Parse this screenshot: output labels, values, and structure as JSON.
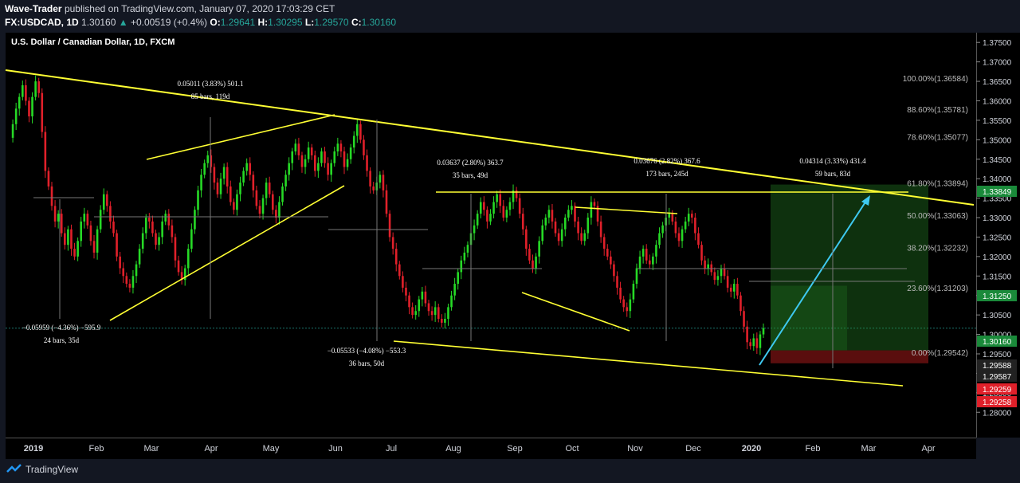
{
  "header": {
    "author": "Wave-Trader",
    "published": "published on TradingView.com, January 07, 2020 17:03:29 CET",
    "symbol": "FX:USDCAD, 1D",
    "last": "1.30160",
    "change": "+0.00519 (+0.4%)",
    "o_label": "O:",
    "o_value": "1.29641",
    "h_label": "H:",
    "h_value": "1.30295",
    "l_label": "L:",
    "l_value": "1.29570",
    "c_label": "C:",
    "c_value": "1.30160"
  },
  "chart_title": "U.S. Dollar / Canadian Dollar, 1D, FXCM",
  "footer": {
    "brand": "TradingView"
  },
  "colors": {
    "up": "#26d926",
    "down": "#e0202a",
    "trendline": "#ffff33",
    "arrow": "#3ec9f0",
    "price_tag_blue": "#1a8a3a",
    "price_tag_red": "#e0202a"
  },
  "chart_data": {
    "type": "candlestick",
    "ylim": [
      1.2735,
      1.3775
    ],
    "y_ticks": [
      "1.37500",
      "1.37000",
      "1.36500",
      "1.36000",
      "1.35500",
      "1.35000",
      "1.34500",
      "1.34000",
      "1.33500",
      "1.33000",
      "1.32500",
      "1.32000",
      "1.31500",
      "1.31000",
      "1.30500",
      "1.30000",
      "1.29500",
      "1.29000",
      "1.28500",
      "1.28000"
    ],
    "x_ticks": [
      "2019",
      "Feb",
      "Mar",
      "Apr",
      "May",
      "Jun",
      "Jul",
      "Aug",
      "Sep",
      "Oct",
      "Nov",
      "Dec",
      "2020",
      "Feb",
      "Mar",
      "Apr"
    ],
    "price_tags": [
      {
        "label": "1.33849",
        "style": "green"
      },
      {
        "label": "1.31250",
        "style": "green"
      },
      {
        "label": "1.30160",
        "style": "green"
      },
      {
        "label": "1.29588",
        "style": "dark"
      },
      {
        "label": "1.29587",
        "style": "dark"
      },
      {
        "label": "1.29259",
        "style": "red"
      },
      {
        "label": "1.29258",
        "style": "red"
      }
    ],
    "fib_levels": [
      {
        "label": "100.00%(1.36584)",
        "value": 1.36584
      },
      {
        "label": "88.60%(1.35781)",
        "value": 1.35781
      },
      {
        "label": "78.60%(1.35077)",
        "value": 1.35077
      },
      {
        "label": "61.80%(1.33894)",
        "value": 1.33894
      },
      {
        "label": "50.00%(1.33063)",
        "value": 1.33063
      },
      {
        "label": "38.20%(1.32232)",
        "value": 1.32232
      },
      {
        "label": "23.60%(1.31203)",
        "value": 1.31203
      },
      {
        "label": "0.00%(1.29542)",
        "value": 1.29542
      }
    ],
    "measure_labels": [
      {
        "line1": "0.05011 (3.83%) 501.1",
        "line2": "85 bars, 119d"
      },
      {
        "line1": "−0.05959 (−4.36%) −595.9",
        "line2": "24 bars, 35d"
      },
      {
        "line1": "0.03637 (2.80%) 363.7",
        "line2": "35 bars, 49d"
      },
      {
        "line1": "−0.05533 (−4.08%) −553.3",
        "line2": "36 bars, 50d"
      },
      {
        "line1": "0.03676 (2.82%) 367.6",
        "line2": "173 bars, 245d"
      },
      {
        "line1": "0.04314 (3.33%) 431.4",
        "line2": "59 bars, 83d"
      }
    ],
    "series": [
      {
        "values": [
          1.3505,
          1.354,
          1.358,
          1.361,
          1.364,
          1.36,
          1.356,
          1.361,
          1.365,
          1.362,
          1.352,
          1.342,
          1.338,
          1.333,
          1.329,
          1.331,
          1.326,
          1.323,
          1.327,
          1.322,
          1.32,
          1.324,
          1.329,
          1.331,
          1.328,
          1.324,
          1.321,
          1.327,
          1.332,
          1.336,
          1.333,
          1.329,
          1.326,
          1.32,
          1.317,
          1.315,
          1.313,
          1.312,
          1.315,
          1.318,
          1.322,
          1.326,
          1.33,
          1.329,
          1.326,
          1.323,
          1.325,
          1.329,
          1.331,
          1.328,
          1.325,
          1.319,
          1.316,
          1.314,
          1.317,
          1.322,
          1.327,
          1.332,
          1.337,
          1.341,
          1.344,
          1.346,
          1.343,
          1.339,
          1.336,
          1.34,
          1.343,
          1.338,
          1.334,
          1.332,
          1.336,
          1.339,
          1.342,
          1.344,
          1.341,
          1.337,
          1.333,
          1.331,
          1.335,
          1.339,
          1.336,
          1.332,
          1.33,
          1.334,
          1.338,
          1.341,
          1.344,
          1.347,
          1.349,
          1.346,
          1.343,
          1.345,
          1.348,
          1.346,
          1.342,
          1.344,
          1.347,
          1.344,
          1.341,
          1.344,
          1.347,
          1.349,
          1.347,
          1.343,
          1.345,
          1.348,
          1.351,
          1.354,
          1.35,
          1.346,
          1.342,
          1.338,
          1.337,
          1.339,
          1.341,
          1.337,
          1.331,
          1.325,
          1.322,
          1.318,
          1.315,
          1.312,
          1.31,
          1.307,
          1.305,
          1.306,
          1.309,
          1.311,
          1.308,
          1.306,
          1.305,
          1.307,
          1.304,
          1.303,
          1.304,
          1.307,
          1.31,
          1.313,
          1.316,
          1.319,
          1.321,
          1.323,
          1.326,
          1.328,
          1.331,
          1.334,
          1.332,
          1.329,
          1.331,
          1.334,
          1.336,
          1.333,
          1.33,
          1.332,
          1.334,
          1.337,
          1.335,
          1.331,
          1.327,
          1.322,
          1.319,
          1.317,
          1.32,
          1.324,
          1.328,
          1.33,
          1.332,
          1.329,
          1.326,
          1.324,
          1.327,
          1.33,
          1.332,
          1.333,
          1.329,
          1.326,
          1.324,
          1.326,
          1.33,
          1.334,
          1.333,
          1.329,
          1.325,
          1.322,
          1.32,
          1.318,
          1.315,
          1.312,
          1.309,
          1.307,
          1.306,
          1.309,
          1.313,
          1.317,
          1.32,
          1.322,
          1.319,
          1.318,
          1.32,
          1.323,
          1.326,
          1.328,
          1.33,
          1.331,
          1.329,
          1.326,
          1.324,
          1.327,
          1.329,
          1.331,
          1.33,
          1.326,
          1.323,
          1.319,
          1.317,
          1.318,
          1.316,
          1.314,
          1.315,
          1.317,
          1.315,
          1.312,
          1.311,
          1.313,
          1.31,
          1.306,
          1.302,
          1.298,
          1.297,
          1.299,
          1.2965,
          1.3,
          1.3016
        ]
      }
    ]
  }
}
